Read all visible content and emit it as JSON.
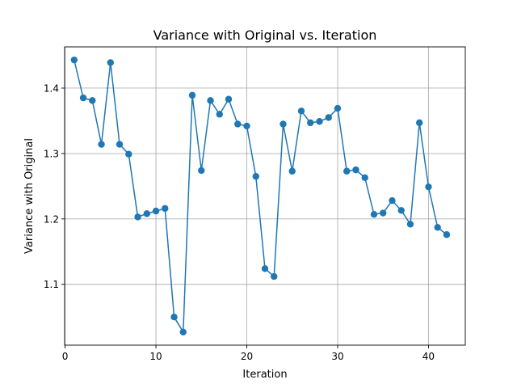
{
  "chart_data": {
    "type": "line",
    "title": "Variance with Original vs. Iteration",
    "xlabel": "Iteration",
    "ylabel": "Variance with Original",
    "xlim": [
      -0.05,
      44.05
    ],
    "ylim": [
      1.007,
      1.463
    ],
    "xticks": [
      0,
      10,
      20,
      30,
      40
    ],
    "yticks": [
      1.1,
      1.2,
      1.3,
      1.4
    ],
    "grid": true,
    "marker": "circle",
    "series": [
      {
        "color": "#1f77b4",
        "x": [
          1,
          2,
          3,
          4,
          5,
          6,
          7,
          8,
          9,
          10,
          11,
          12,
          13,
          14,
          15,
          16,
          17,
          18,
          19,
          20,
          21,
          22,
          23,
          24,
          25,
          26,
          27,
          28,
          29,
          30,
          31,
          32,
          33,
          34,
          35,
          36,
          37,
          38,
          39,
          40,
          41,
          42
        ],
        "y": [
          1.443,
          1.385,
          1.381,
          1.314,
          1.439,
          1.314,
          1.299,
          1.203,
          1.208,
          1.212,
          1.216,
          1.05,
          1.027,
          1.389,
          1.274,
          1.381,
          1.36,
          1.383,
          1.345,
          1.342,
          1.265,
          1.124,
          1.112,
          1.345,
          1.273,
          1.365,
          1.347,
          1.349,
          1.355,
          1.369,
          1.273,
          1.275,
          1.263,
          1.207,
          1.209,
          1.228,
          1.213,
          1.192,
          1.347,
          1.249,
          1.187,
          1.176
        ]
      }
    ]
  }
}
